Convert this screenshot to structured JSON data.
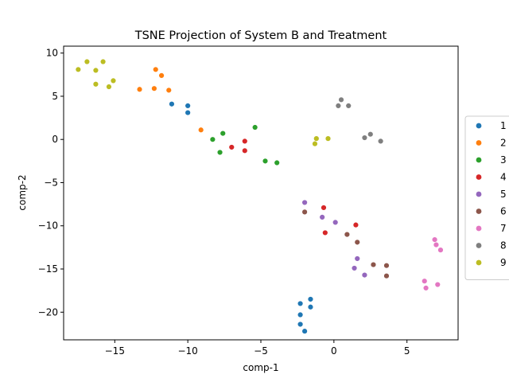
{
  "chart_data": {
    "type": "scatter",
    "title": "TSNE Projection of System B and Treatment",
    "xlabel": "comp-1",
    "ylabel": "comp-2",
    "xlim": [
      -18.5,
      8.5
    ],
    "ylim": [
      -23.2,
      10.8
    ],
    "xticks": [
      -15,
      -10,
      -5,
      0,
      5
    ],
    "yticks": [
      10,
      5,
      0,
      -5,
      -10,
      -15,
      -20
    ],
    "grid": false,
    "legend_position": "right",
    "series": [
      {
        "name": "1",
        "color": "#1f77b4",
        "points": [
          [
            -11.1,
            4.1
          ],
          [
            -10.0,
            3.9
          ],
          [
            -10.0,
            3.1
          ],
          [
            -1.6,
            -18.5
          ],
          [
            -2.3,
            -19.0
          ],
          [
            -1.6,
            -19.4
          ],
          [
            -2.3,
            -20.3
          ],
          [
            -2.3,
            -21.4
          ],
          [
            -2.0,
            -22.2
          ]
        ]
      },
      {
        "name": "2",
        "color": "#ff7f0e",
        "points": [
          [
            -12.2,
            8.1
          ],
          [
            -11.8,
            7.4
          ],
          [
            -13.3,
            5.8
          ],
          [
            -12.3,
            5.9
          ],
          [
            -11.3,
            5.7
          ],
          [
            -9.1,
            1.1
          ]
        ]
      },
      {
        "name": "3",
        "color": "#2ca02c",
        "points": [
          [
            -5.4,
            1.4
          ],
          [
            -7.6,
            0.7
          ],
          [
            -8.3,
            0.0
          ],
          [
            -7.8,
            -1.5
          ],
          [
            -4.7,
            -2.5
          ],
          [
            -3.9,
            -2.7
          ]
        ]
      },
      {
        "name": "4",
        "color": "#d62728",
        "points": [
          [
            -6.1,
            -0.2
          ],
          [
            -7.0,
            -0.9
          ],
          [
            -6.1,
            -1.3
          ],
          [
            -0.7,
            -7.9
          ],
          [
            1.5,
            -9.9
          ],
          [
            -0.6,
            -10.8
          ]
        ]
      },
      {
        "name": "5",
        "color": "#9467bd",
        "points": [
          [
            -2.0,
            -7.3
          ],
          [
            -0.8,
            -9.0
          ],
          [
            0.1,
            -9.6
          ],
          [
            1.6,
            -13.8
          ],
          [
            1.4,
            -14.9
          ],
          [
            2.1,
            -15.7
          ]
        ]
      },
      {
        "name": "6",
        "color": "#8c564b",
        "points": [
          [
            -2.0,
            -8.4
          ],
          [
            0.9,
            -11.0
          ],
          [
            1.6,
            -11.9
          ],
          [
            2.7,
            -14.5
          ],
          [
            3.6,
            -14.6
          ],
          [
            3.6,
            -15.8
          ]
        ]
      },
      {
        "name": "7",
        "color": "#e377c2",
        "points": [
          [
            6.9,
            -11.6
          ],
          [
            7.0,
            -12.2
          ],
          [
            7.3,
            -12.8
          ],
          [
            6.2,
            -16.4
          ],
          [
            7.1,
            -16.8
          ],
          [
            6.3,
            -17.2
          ]
        ]
      },
      {
        "name": "8",
        "color": "#7f7f7f",
        "points": [
          [
            0.5,
            4.6
          ],
          [
            0.3,
            3.9
          ],
          [
            1.0,
            3.9
          ],
          [
            2.5,
            0.6
          ],
          [
            2.1,
            0.2
          ],
          [
            3.2,
            -0.2
          ]
        ]
      },
      {
        "name": "9",
        "color": "#bcbd22",
        "points": [
          [
            -16.9,
            9.0
          ],
          [
            -15.8,
            9.0
          ],
          [
            -17.5,
            8.1
          ],
          [
            -16.3,
            8.0
          ],
          [
            -15.1,
            6.8
          ],
          [
            -16.3,
            6.4
          ],
          [
            -15.4,
            6.1
          ],
          [
            -1.2,
            0.1
          ],
          [
            -0.4,
            0.1
          ],
          [
            -1.3,
            -0.5
          ]
        ]
      }
    ]
  }
}
